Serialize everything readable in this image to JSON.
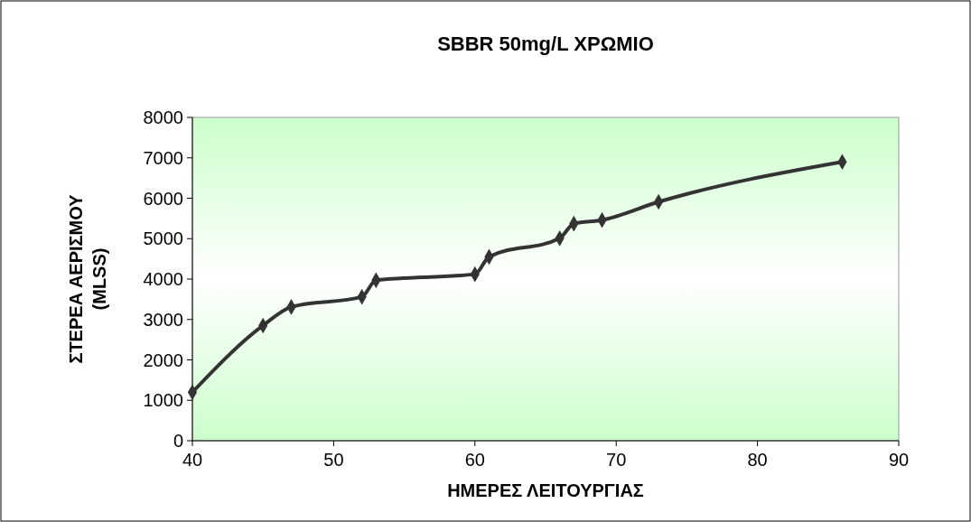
{
  "chart_data": {
    "type": "line",
    "title": "SBBR 50mg/L ΧΡΩΜΙΟ",
    "xlabel": "ΗΜΕΡΕΣ ΛΕΙΤΟΥΡΓΙΑΣ",
    "ylabel": "ΣΤΕΡΕΑ ΑΕΡΙΣΜΟΥ (MLSS)",
    "x": [
      40,
      45,
      47,
      52,
      53,
      60,
      61,
      66,
      67,
      69,
      73,
      86
    ],
    "series": [
      {
        "color": "#333333",
        "values": [
          1200,
          2850,
          3310,
          3560,
          3970,
          4120,
          4550,
          5010,
          5370,
          5460,
          5910,
          6900
        ]
      }
    ],
    "xlim": [
      40,
      90
    ],
    "xticks": [
      40,
      50,
      60,
      70,
      80,
      90
    ],
    "ylim": [
      0,
      8000
    ],
    "yticks": [
      0,
      1000,
      2000,
      3000,
      4000,
      5000,
      6000,
      7000,
      8000
    ],
    "grid": false,
    "marker": "diamond",
    "line_style": "solid"
  }
}
